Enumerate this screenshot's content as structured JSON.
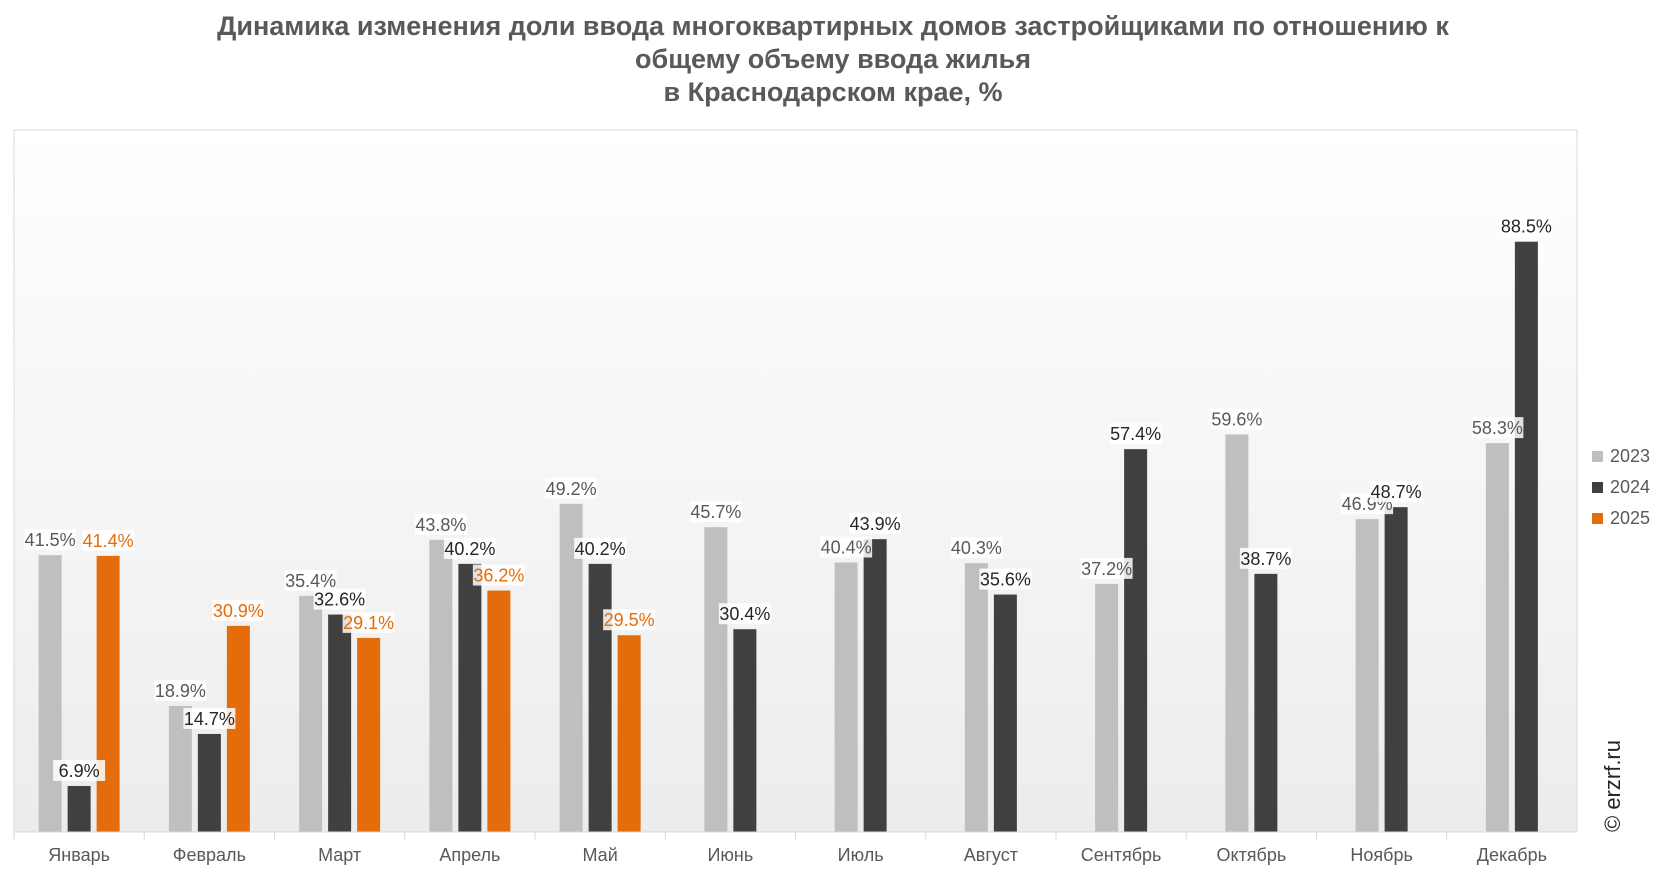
{
  "chart_data": {
    "type": "bar",
    "title_lines": [
      "Динамика изменения доли ввода многоквартирных домов застройщиками по отношению к",
      "общему объему ввода жилья",
      "в Краснодарском крае, %"
    ],
    "categories": [
      "Январь",
      "Февраль",
      "Март",
      "Апрель",
      "Май",
      "Июнь",
      "Июль",
      "Август",
      "Сентябрь",
      "Октябрь",
      "Ноябрь",
      "Декабрь"
    ],
    "series": [
      {
        "name": "2023",
        "color": "#bfbfbf",
        "label_color": "#595959",
        "values": [
          41.5,
          18.9,
          35.4,
          43.8,
          49.2,
          45.7,
          40.4,
          40.3,
          37.2,
          59.6,
          46.9,
          58.3
        ],
        "labels": [
          "41.5%",
          "18.9%",
          "35.4%",
          "43.8%",
          "49.2%",
          "45.7%",
          "40.4%",
          "40.3%",
          "37.2%",
          "59.6%",
          "46.9%",
          "58.3%"
        ]
      },
      {
        "name": "2024",
        "color": "#404040",
        "label_color": "#262626",
        "values": [
          6.9,
          14.7,
          32.6,
          40.2,
          40.2,
          30.4,
          43.9,
          35.6,
          57.4,
          38.7,
          48.7,
          88.5
        ],
        "labels": [
          "6.9%",
          "14.7%",
          "32.6%",
          "40.2%",
          "40.2%",
          "30.4%",
          "43.9%",
          "35.6%",
          "57.4%",
          "38.7%",
          "48.7%",
          "88.5%"
        ]
      },
      {
        "name": "2025",
        "color": "#e46c0a",
        "label_color": "#e46c0a",
        "values": [
          41.4,
          30.9,
          29.1,
          36.2,
          29.5,
          null,
          null,
          null,
          null,
          null,
          null,
          null
        ],
        "labels": [
          "41.4%",
          "30.9%",
          "29.1%",
          "36.2%",
          "29.5%",
          null,
          null,
          null,
          null,
          null,
          null,
          null
        ]
      }
    ],
    "ylim": [
      0,
      100
    ],
    "grid": false,
    "legend": "right",
    "watermark": "© erzrf.ru"
  }
}
